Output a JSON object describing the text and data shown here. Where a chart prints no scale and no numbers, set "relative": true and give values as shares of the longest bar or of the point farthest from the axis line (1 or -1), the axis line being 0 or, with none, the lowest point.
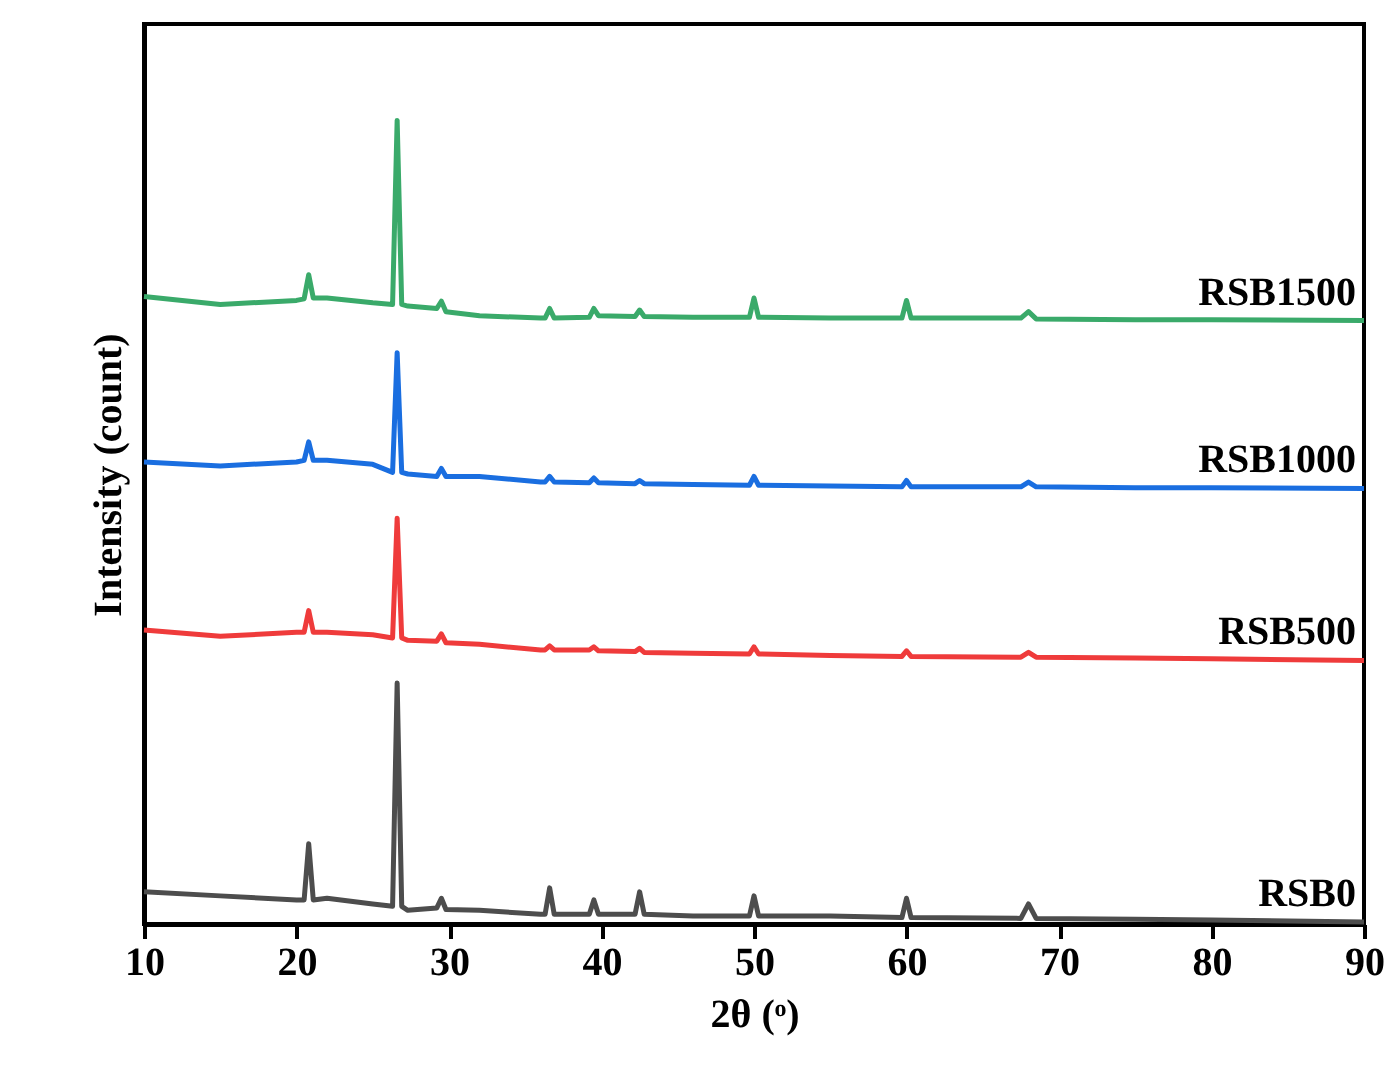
{
  "chart_data": {
    "type": "line",
    "relative": true,
    "xlabel": "2θ (ᵒ)",
    "ylabel": "Intensity (count)",
    "xlim": [
      10,
      90
    ],
    "xticks": [
      10,
      20,
      30,
      40,
      50,
      60,
      70,
      80,
      90
    ],
    "grid": false,
    "marker": "none",
    "line_style": "solid",
    "x": [
      10,
      15,
      20,
      20.5,
      20.8,
      21.1,
      22,
      25,
      26.3,
      26.6,
      26.9,
      27.3,
      29.2,
      29.5,
      29.8,
      32,
      36,
      36.3,
      36.6,
      36.9,
      39.2,
      39.5,
      39.8,
      42.2,
      42.5,
      42.8,
      46,
      49.7,
      50,
      50.3,
      55,
      59.7,
      60,
      60.3,
      67.5,
      68,
      68.5,
      75,
      80,
      90
    ],
    "series": [
      {
        "name": "RSB0",
        "color": "#4d4d4d",
        "values": [
          0.04,
          0.035,
          0.03,
          0.03,
          0.1,
          0.03,
          0.032,
          0.025,
          0.022,
          0.3,
          0.022,
          0.017,
          0.02,
          0.032,
          0.018,
          0.017,
          0.012,
          0.012,
          0.045,
          0.012,
          0.012,
          0.03,
          0.012,
          0.012,
          0.04,
          0.012,
          0.01,
          0.01,
          0.035,
          0.01,
          0.01,
          0.008,
          0.032,
          0.008,
          0.007,
          0.025,
          0.007,
          0.006,
          0.005,
          0.0025
        ]
      },
      {
        "name": "RSB500",
        "color": "#ef3b3b",
        "values": [
          0.366,
          0.358,
          0.363,
          0.363,
          0.39,
          0.363,
          0.363,
          0.36,
          0.356,
          0.505,
          0.356,
          0.353,
          0.352,
          0.361,
          0.35,
          0.348,
          0.341,
          0.341,
          0.346,
          0.341,
          0.341,
          0.345,
          0.34,
          0.339,
          0.343,
          0.338,
          0.337,
          0.336,
          0.345,
          0.336,
          0.334,
          0.333,
          0.34,
          0.333,
          0.332,
          0.338,
          0.332,
          0.331,
          0.33,
          0.328
        ]
      },
      {
        "name": "RSB1000",
        "color": "#1a6ee0",
        "values": [
          0.575,
          0.57,
          0.575,
          0.577,
          0.6,
          0.577,
          0.577,
          0.572,
          0.562,
          0.711,
          0.562,
          0.56,
          0.557,
          0.567,
          0.557,
          0.557,
          0.55,
          0.55,
          0.557,
          0.55,
          0.549,
          0.555,
          0.549,
          0.548,
          0.552,
          0.548,
          0.547,
          0.546,
          0.557,
          0.546,
          0.545,
          0.544,
          0.552,
          0.544,
          0.544,
          0.55,
          0.544,
          0.543,
          0.543,
          0.542
        ]
      },
      {
        "name": "RSB1500",
        "color": "#3aaa6a",
        "values": [
          0.781,
          0.771,
          0.776,
          0.778,
          0.808,
          0.779,
          0.779,
          0.773,
          0.771,
          1.0,
          0.771,
          0.769,
          0.766,
          0.775,
          0.762,
          0.757,
          0.754,
          0.754,
          0.766,
          0.754,
          0.755,
          0.766,
          0.757,
          0.756,
          0.764,
          0.756,
          0.755,
          0.755,
          0.779,
          0.755,
          0.754,
          0.754,
          0.776,
          0.754,
          0.754,
          0.762,
          0.753,
          0.752,
          0.752,
          0.751
        ]
      }
    ]
  }
}
